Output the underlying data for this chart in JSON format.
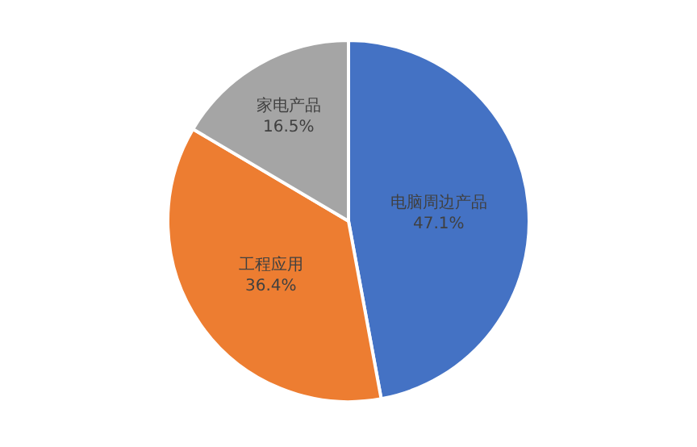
{
  "chart_data": {
    "type": "pie",
    "categories": [
      "电脑周边产品",
      "工程应用",
      "家电产品"
    ],
    "values": [
      47.1,
      36.4,
      16.5
    ],
    "value_labels": [
      "47.1%",
      "36.4%",
      "16.5%"
    ],
    "colors": [
      "#4472c4",
      "#ed7d31",
      "#a5a5a5"
    ],
    "legend": false
  }
}
